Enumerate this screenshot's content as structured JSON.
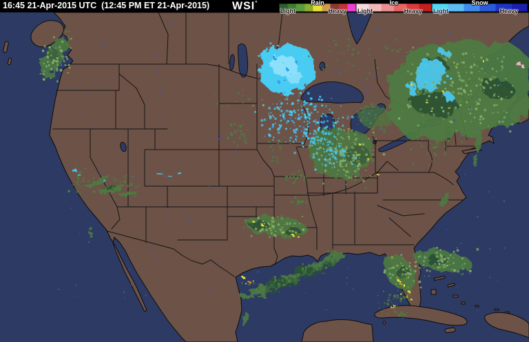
{
  "header": {
    "timestamp": "16:45 21-Apr-2015 UTC  (12:45 PM ET 21-Apr-2015)",
    "logo_text": "WSI",
    "logo_mark": "°"
  },
  "legend": {
    "rain": {
      "label": "Rain",
      "light_label": "Light",
      "heavy_label": "Heavy",
      "stops": [
        "#2f5d2c",
        "#3f7d2f",
        "#5c9c3c",
        "#8fae2e",
        "#e8e232",
        "#d29a4e",
        "#8c3a30",
        "#c03434",
        "#ee3fd4"
      ]
    },
    "ice": {
      "label": "Ice",
      "light_label": "Light",
      "heavy_label": "Heavy",
      "stops": [
        "#f6dbdb",
        "#f2b9b9",
        "#ec8f8f",
        "#e66464",
        "#da3a3a",
        "#c31f1f"
      ]
    },
    "snow": {
      "label": "Snow",
      "light_label": "Light",
      "heavy_label": "Heavy",
      "stops": [
        "#4ed8f6",
        "#5cbcf4",
        "#3f8cec",
        "#2b5adc",
        "#1e35c4",
        "#1a1fae"
      ]
    }
  },
  "colors": {
    "header_bg": "#000000",
    "header_text": "#ffffff",
    "ocean": "#2d3a63",
    "land": "#6d5247",
    "rain_light": "#4e7c42",
    "rain_dark": "#2c5530",
    "rain_speck": "#85ad68",
    "storm_yellow": "#e5df33",
    "storm_orange": "#df9020",
    "snow_light": "#49ccf2",
    "snow_pale": "#8ce0fa",
    "snow_mid": "#2f9fe8",
    "ice_pink": "#f0b4c4",
    "small_lake": "#3b55b0"
  }
}
